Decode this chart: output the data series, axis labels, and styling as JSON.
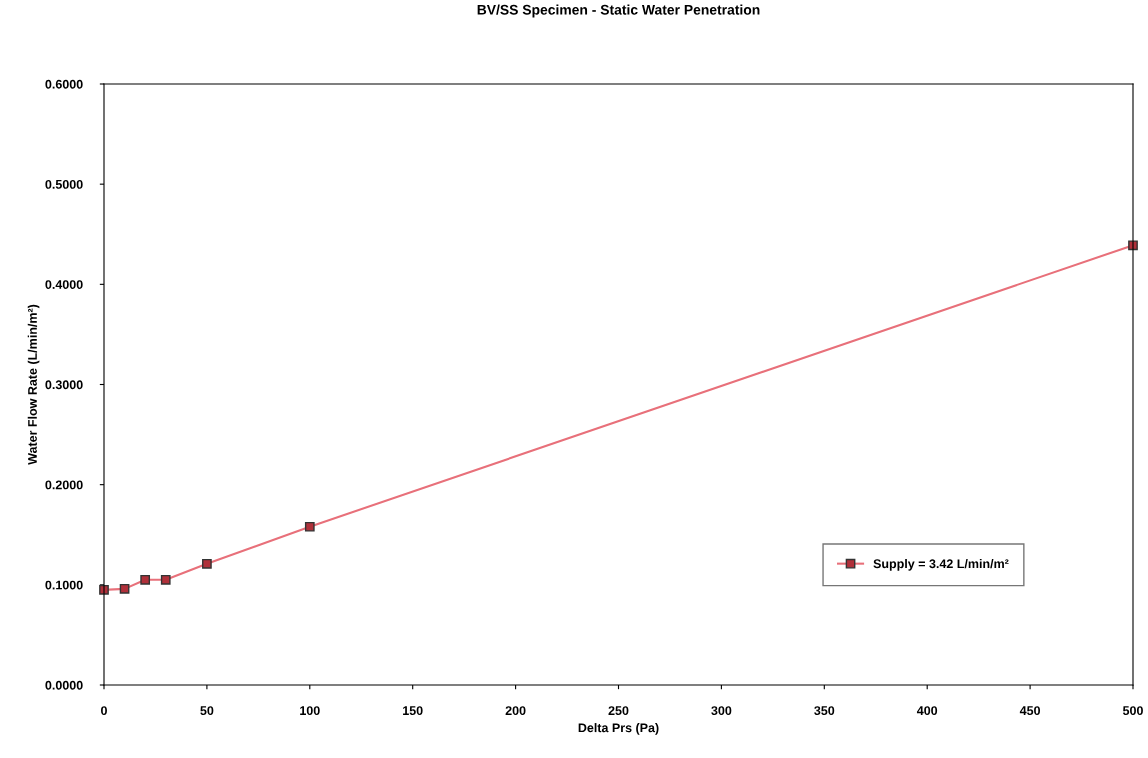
{
  "chart_data": {
    "type": "line",
    "title": "BV/SS Specimen - Static Water Penetration",
    "xlabel": "Delta Prs (Pa)",
    "ylabel": "Water Flow Rate (L/min/m²)",
    "x": [
      0,
      10,
      20,
      30,
      50,
      100,
      500
    ],
    "series": [
      {
        "name": "Supply = 3.42 L/min/m²",
        "color": "#e8707a",
        "values": [
          0.095,
          0.096,
          0.105,
          0.105,
          0.121,
          0.158,
          0.439
        ]
      }
    ],
    "xlim": [
      0,
      500
    ],
    "xticks": [
      0,
      50,
      100,
      150,
      200,
      250,
      300,
      350,
      400,
      450,
      500
    ],
    "ylim": [
      0,
      0.6
    ],
    "yticks": [
      {
        "value": 0,
        "label": "0.0000"
      },
      {
        "value": 0.1,
        "label": "0.1000"
      },
      {
        "value": 0.2,
        "label": "0.2000"
      },
      {
        "value": 0.3,
        "label": "0.3000"
      },
      {
        "value": 0.4,
        "label": "0.4000"
      },
      {
        "value": 0.5,
        "label": "0.5000"
      },
      {
        "value": 0.6,
        "label": "0.6000"
      }
    ],
    "grid": false,
    "legend": "right",
    "marker": "square",
    "line_style": "solid"
  }
}
